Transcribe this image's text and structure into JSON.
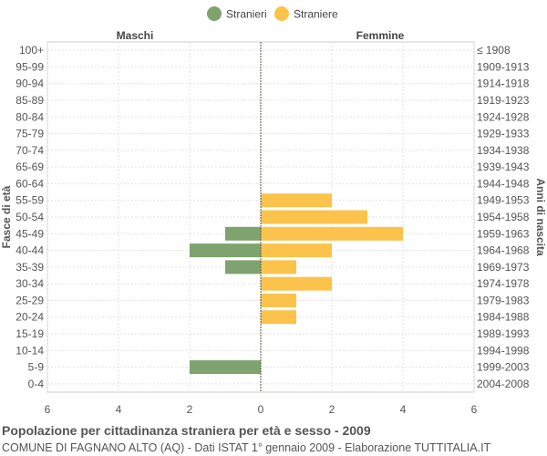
{
  "chart_data": {
    "type": "bar",
    "orientation": "horizontal-pyramid",
    "title": "Popolazione per cittadinanza straniera per età e sesso - 2009",
    "subtitle": "COMUNE DI FAGNANO ALTO (AQ) - Dati ISTAT 1° gennaio 2009 - Elaborazione TUTTITALIA.IT",
    "left_header": "Maschi",
    "right_header": "Femmine",
    "ylabel_left": "Fasce di età",
    "ylabel_right": "Anni di nascita",
    "xlim": [
      -6,
      6
    ],
    "xticks": [
      6,
      4,
      2,
      0,
      2,
      4,
      6
    ],
    "grid": true,
    "legend": {
      "position": "top-center",
      "items": [
        {
          "name": "Stranieri",
          "color": "#7fa36f"
        },
        {
          "name": "Straniere",
          "color": "#fbc34c"
        }
      ]
    },
    "categories": [
      "100+",
      "95-99",
      "90-94",
      "85-89",
      "80-84",
      "75-79",
      "70-74",
      "65-69",
      "60-64",
      "55-59",
      "50-54",
      "45-49",
      "40-44",
      "35-39",
      "30-34",
      "25-29",
      "20-24",
      "15-19",
      "10-14",
      "5-9",
      "0-4"
    ],
    "birth_years": [
      "≤ 1908",
      "1909-1913",
      "1914-1918",
      "1919-1923",
      "1924-1928",
      "1929-1933",
      "1934-1938",
      "1939-1943",
      "1944-1948",
      "1949-1953",
      "1954-1958",
      "1959-1963",
      "1964-1968",
      "1969-1973",
      "1974-1978",
      "1979-1983",
      "1984-1988",
      "1989-1993",
      "1994-1998",
      "1999-2003",
      "2004-2008"
    ],
    "series": [
      {
        "name": "Stranieri",
        "side": "left",
        "color": "#7fa36f",
        "values": [
          0,
          0,
          0,
          0,
          0,
          0,
          0,
          0,
          0,
          0,
          0,
          1,
          2,
          1,
          0,
          0,
          0,
          0,
          0,
          2,
          0
        ]
      },
      {
        "name": "Straniere",
        "side": "right",
        "color": "#fbc34c",
        "values": [
          0,
          0,
          0,
          0,
          0,
          0,
          0,
          0,
          0,
          2,
          3,
          4,
          2,
          1,
          2,
          1,
          1,
          0,
          0,
          0,
          0
        ]
      }
    ]
  }
}
